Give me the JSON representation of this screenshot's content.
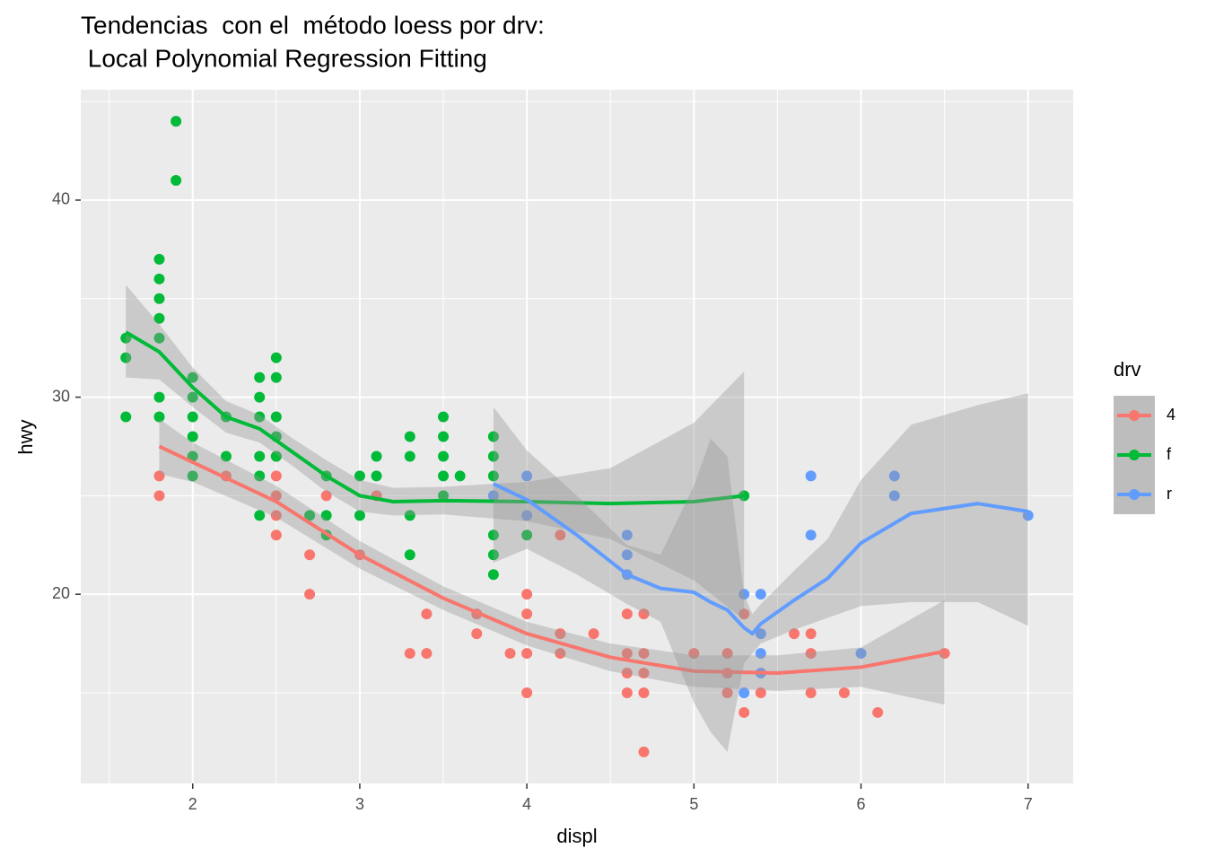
{
  "chart_data": {
    "type": "scatter",
    "title": [
      "Tendencias  con el  método loess por drv:",
      " Local Polynomial Regression Fitting"
    ],
    "xlabel": "displ",
    "ylabel": "hwy",
    "legend_title": "drv",
    "legend": "right",
    "grid": true,
    "xlim": [
      1.33,
      7.27
    ],
    "ylim": [
      10.4,
      45.6
    ],
    "xticks": [
      2,
      3,
      4,
      5,
      6,
      7
    ],
    "yticks": [
      20,
      30,
      40
    ],
    "x_minor_grid": [
      1.5,
      2.5,
      3.5,
      4.5,
      5.5,
      6.5
    ],
    "y_minor_grid": [
      15,
      25,
      35,
      45
    ],
    "band_color": "#999999",
    "series": [
      {
        "name": "4",
        "color": "#F8766D",
        "x": [
          1.8,
          1.8,
          2.2,
          2.5,
          2.5,
          2.5,
          2.5,
          2.5,
          2.7,
          2.7,
          2.8,
          3.0,
          3.1,
          3.3,
          3.4,
          3.4,
          3.7,
          3.7,
          3.9,
          4.0,
          4.0,
          4.0,
          4.0,
          4.2,
          4.2,
          4.2,
          4.4,
          4.6,
          4.6,
          4.6,
          4.6,
          4.7,
          4.7,
          4.7,
          4.7,
          4.7,
          5.0,
          5.2,
          5.2,
          5.2,
          5.3,
          5.3,
          5.4,
          5.6,
          5.7,
          5.7,
          5.7,
          5.9,
          6.1,
          6.5
        ],
        "values": [
          26,
          25,
          26,
          27,
          26,
          25,
          24,
          23,
          22,
          20,
          25,
          22,
          25,
          17,
          19,
          17,
          19,
          18,
          17,
          20,
          19,
          17,
          15,
          23,
          18,
          17,
          18,
          19,
          17,
          16,
          15,
          19,
          17,
          16,
          15,
          12,
          17,
          17,
          16,
          15,
          19,
          14,
          15,
          18,
          18,
          17,
          15,
          15,
          14,
          17
        ],
        "smooth": {
          "x": [
            1.8,
            2.0,
            2.5,
            3.0,
            3.5,
            4.0,
            4.5,
            5.0,
            5.5,
            6.0,
            6.5
          ],
          "values": [
            27.5,
            26.7,
            24.7,
            22.0,
            19.8,
            18.0,
            16.8,
            16.1,
            16.0,
            16.3,
            17.1
          ],
          "lower": [
            26.1,
            25.7,
            23.9,
            21.3,
            19.2,
            17.4,
            16.1,
            15.3,
            15.1,
            15.3,
            14.4
          ],
          "upper": [
            28.9,
            27.7,
            25.5,
            22.7,
            20.4,
            18.6,
            17.5,
            16.9,
            16.9,
            17.3,
            19.7
          ]
        }
      },
      {
        "name": "f",
        "color": "#00BA38",
        "x": [
          1.6,
          1.6,
          1.6,
          1.8,
          1.8,
          1.8,
          1.8,
          1.8,
          1.8,
          1.8,
          1.9,
          1.9,
          2.0,
          2.0,
          2.0,
          2.0,
          2.0,
          2.0,
          2.2,
          2.2,
          2.4,
          2.4,
          2.4,
          2.4,
          2.4,
          2.4,
          2.5,
          2.5,
          2.5,
          2.5,
          2.5,
          2.7,
          2.8,
          2.8,
          2.8,
          3.0,
          3.0,
          3.1,
          3.1,
          3.3,
          3.3,
          3.3,
          3.3,
          3.5,
          3.5,
          3.5,
          3.5,
          3.5,
          3.6,
          3.8,
          3.8,
          3.8,
          3.8,
          3.8,
          3.8,
          4.0,
          5.3
        ],
        "values": [
          33,
          32,
          29,
          37,
          36,
          35,
          34,
          33,
          30,
          29,
          44,
          41,
          31,
          30,
          29,
          28,
          27,
          26,
          29,
          27,
          31,
          30,
          29,
          27,
          26,
          24,
          32,
          31,
          29,
          28,
          27,
          24,
          26,
          24,
          23,
          26,
          24,
          27,
          26,
          28,
          27,
          24,
          22,
          29,
          28,
          27,
          26,
          25,
          26,
          28,
          27,
          26,
          23,
          22,
          21,
          23,
          25
        ],
        "smooth": {
          "x": [
            1.6,
            1.8,
            2.0,
            2.2,
            2.4,
            2.6,
            2.8,
            3.0,
            3.2,
            3.5,
            4.0,
            4.5,
            5.0,
            5.3
          ],
          "values": [
            33.3,
            32.3,
            30.5,
            29.0,
            28.4,
            27.2,
            26.0,
            25.0,
            24.7,
            24.75,
            24.7,
            24.6,
            24.7,
            25.0
          ],
          "lower": [
            31.0,
            30.9,
            29.5,
            28.2,
            27.7,
            26.5,
            25.2,
            24.2,
            24.0,
            24.05,
            23.7,
            22.8,
            20.7,
            18.7
          ],
          "upper": [
            35.7,
            33.7,
            31.5,
            29.8,
            29.1,
            27.9,
            26.8,
            25.8,
            25.4,
            25.45,
            25.7,
            26.4,
            28.7,
            31.3
          ]
        }
      },
      {
        "name": "r",
        "color": "#619CFF",
        "x": [
          3.8,
          4.0,
          4.0,
          4.6,
          4.6,
          4.6,
          5.3,
          5.3,
          5.4,
          5.4,
          5.4,
          5.4,
          5.7,
          5.7,
          6.0,
          6.2,
          6.2,
          7.0
        ],
        "values": [
          25,
          26,
          24,
          23,
          22,
          21,
          20,
          15,
          20,
          18,
          17,
          16,
          26,
          23,
          17,
          26,
          25,
          24
        ],
        "smooth": {
          "x": [
            3.8,
            4.0,
            4.3,
            4.6,
            4.8,
            5.0,
            5.1,
            5.2,
            5.3,
            5.35,
            5.4,
            5.6,
            5.8,
            6.0,
            6.3,
            6.7,
            7.0
          ],
          "values": [
            25.6,
            24.8,
            23.0,
            21.0,
            20.3,
            20.1,
            19.6,
            19.2,
            18.3,
            18.0,
            18.5,
            19.7,
            20.8,
            22.6,
            24.1,
            24.6,
            24.2
          ],
          "lower": [
            21.6,
            22.3,
            21.0,
            19.5,
            18.6,
            14.5,
            13.0,
            12.0,
            16.5,
            17.0,
            17.5,
            18.2,
            18.8,
            19.4,
            19.6,
            19.6,
            18.4
          ],
          "upper": [
            29.5,
            27.3,
            25.0,
            22.5,
            22.0,
            25.5,
            27.9,
            27.0,
            20.0,
            19.0,
            19.5,
            21.2,
            22.8,
            25.8,
            28.6,
            29.6,
            30.2
          ]
        }
      }
    ]
  }
}
